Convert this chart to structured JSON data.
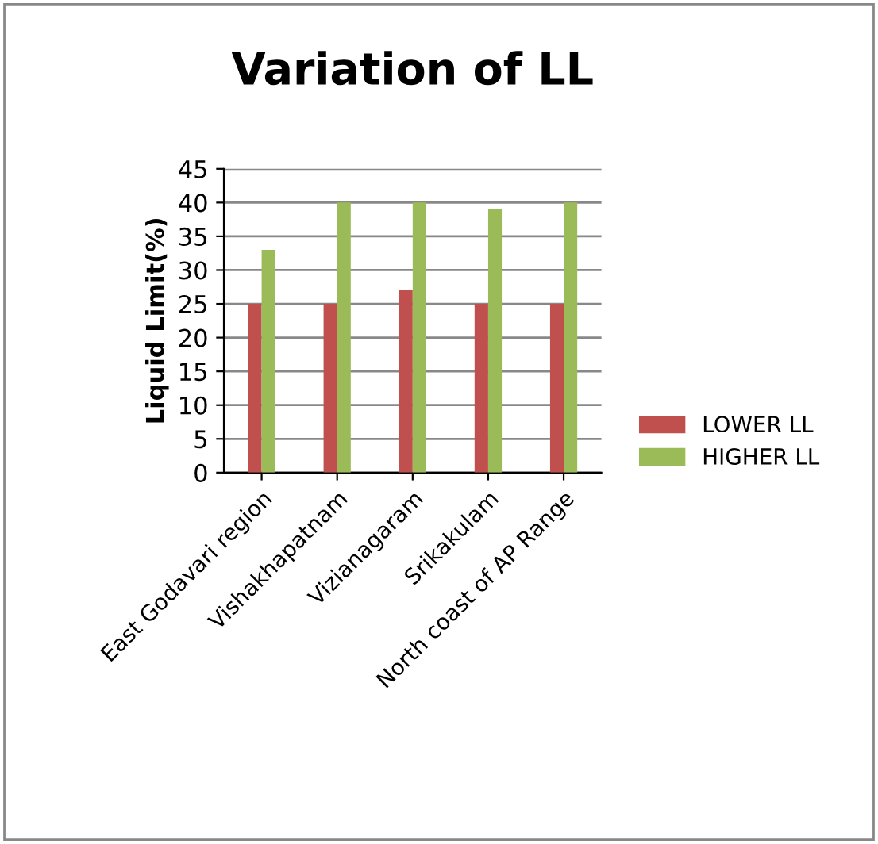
{
  "chart_data": {
    "type": "bar",
    "title": "Variation of LL",
    "ylabel": "Liquid Limit(%)",
    "categories": [
      "East Godavari region",
      "Vishakhapatnam",
      "Vizianagaram",
      "Srikakulam",
      "North coast of AP Range"
    ],
    "series": [
      {
        "name": "LOWER LL",
        "color": "#c0504d",
        "values": [
          25,
          25,
          27,
          25,
          25
        ]
      },
      {
        "name": "HIGHER LL",
        "color": "#9bbb59",
        "values": [
          33,
          40,
          40,
          39,
          40
        ]
      }
    ],
    "ylim": [
      0,
      45
    ],
    "yticks": [
      0,
      5,
      10,
      15,
      20,
      25,
      30,
      35,
      40,
      45
    ],
    "grid": "y",
    "legend": "right"
  }
}
